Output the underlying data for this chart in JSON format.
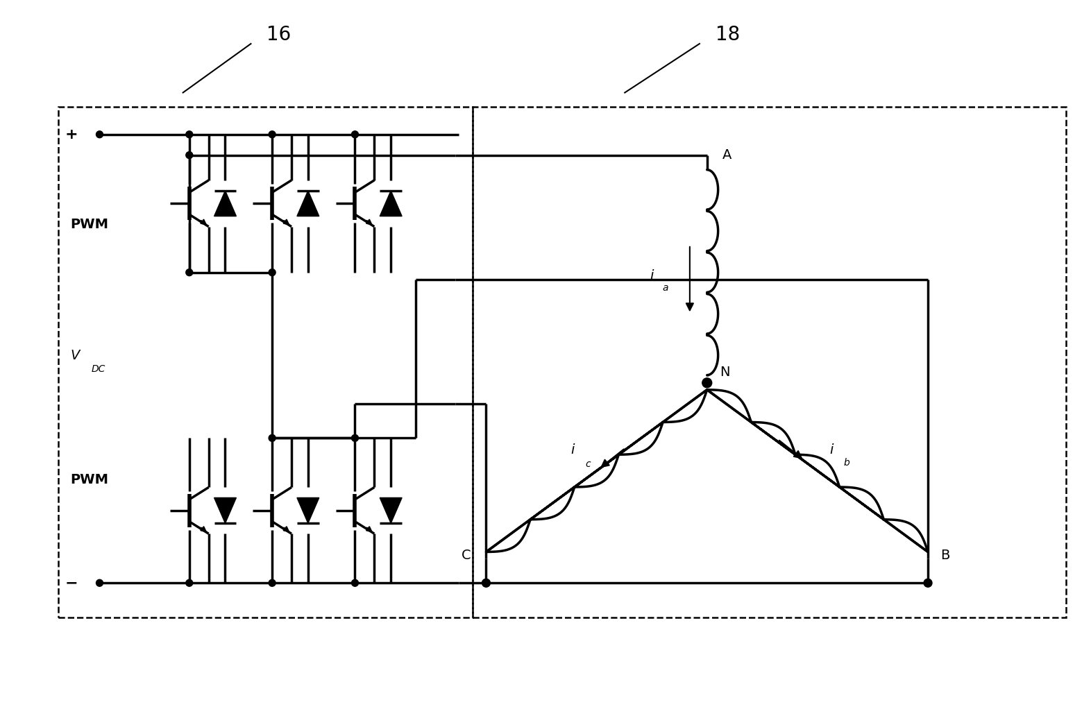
{
  "bg_color": "#ffffff",
  "line_color": "#000000",
  "fig_width": 15.72,
  "fig_height": 10.32,
  "label_16": "16",
  "label_18": "18",
  "label_plus": "+",
  "label_minus": "−",
  "label_PWM_top": "PWM",
  "label_PWM_bot": "PWM",
  "label_VDC": "V",
  "label_VDC_sub": "DC",
  "label_A": "A",
  "label_B": "B",
  "label_C": "C",
  "label_N": "N",
  "label_ia": "i",
  "label_ia_sub": "a",
  "label_ib": "i",
  "label_ib_sub": "b",
  "label_ic": "i",
  "label_ic_sub": "c"
}
